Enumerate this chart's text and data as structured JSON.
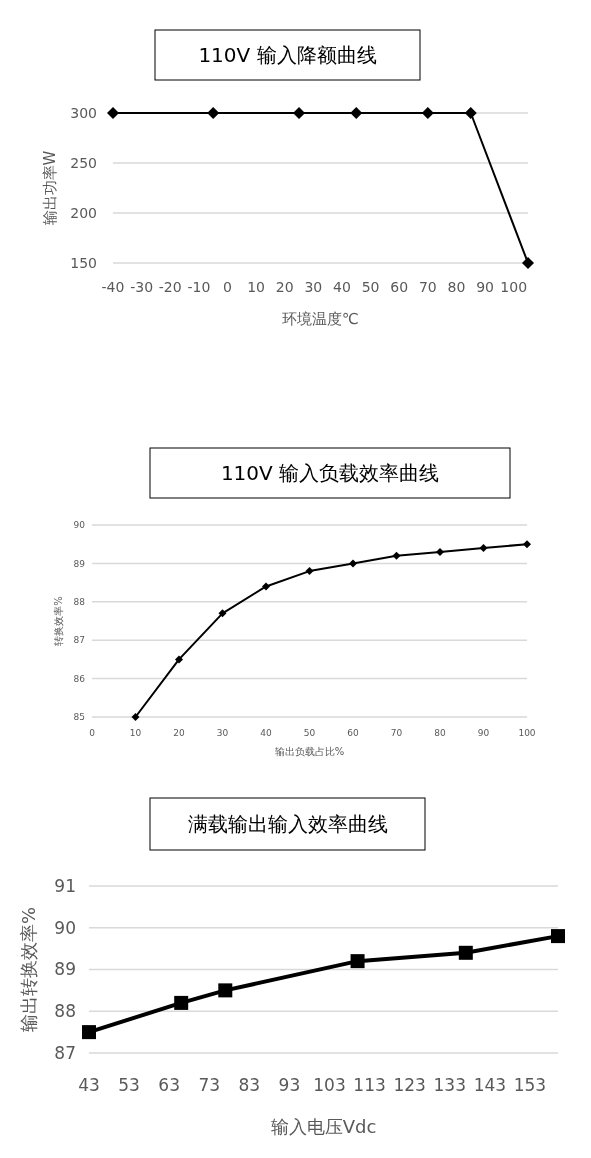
{
  "chart_data": [
    {
      "type": "line",
      "title": "110V 输入降额曲线",
      "xlabel": "环境温度℃",
      "ylabel": "输出功率W",
      "x": [
        -40,
        -5,
        25,
        45,
        70,
        85,
        105
      ],
      "series": [
        {
          "color": "#000000",
          "values": [
            300,
            300,
            300,
            300,
            300,
            300,
            150
          ]
        }
      ],
      "xlim": [
        -40,
        105
      ],
      "xticks": [
        -40,
        -30,
        -20,
        -10,
        0,
        10,
        20,
        30,
        40,
        50,
        60,
        70,
        80,
        90,
        100
      ],
      "ylim": [
        150,
        300
      ],
      "yticks": [
        150,
        200,
        250,
        300
      ],
      "grid": "y",
      "marker": "diamond"
    },
    {
      "type": "line",
      "title": "110V 输入负载效率曲线",
      "xlabel": "输出负载占比%",
      "ylabel": "转换效率%",
      "x": [
        10,
        20,
        30,
        40,
        50,
        60,
        70,
        80,
        90,
        100
      ],
      "series": [
        {
          "color": "#000000",
          "values": [
            85,
            86.5,
            87.7,
            88.4,
            88.8,
            89.0,
            89.2,
            89.3,
            89.4,
            89.5
          ]
        }
      ],
      "xlim": [
        0,
        100
      ],
      "xticks": [
        0,
        10,
        20,
        30,
        40,
        50,
        60,
        70,
        80,
        90,
        100
      ],
      "ylim": [
        85,
        90
      ],
      "yticks": [
        85,
        86,
        87,
        88,
        89,
        90
      ],
      "grid": "y",
      "marker": "diamond"
    },
    {
      "type": "line",
      "title": "满载输出输入效率曲线",
      "xlabel": "输入电压Vdc",
      "ylabel": "输出转换效率%",
      "x": [
        43,
        66,
        77,
        110,
        137,
        160
      ],
      "series": [
        {
          "color": "#000000",
          "values": [
            87.5,
            88.2,
            88.5,
            89.2,
            89.4,
            89.8
          ]
        }
      ],
      "xlim": [
        43,
        160
      ],
      "xticks": [
        43,
        53,
        63,
        73,
        83,
        93,
        103,
        113,
        123,
        133,
        143,
        153
      ],
      "ylim": [
        87,
        91
      ],
      "yticks": [
        87,
        88,
        89,
        90,
        91
      ],
      "grid": "y",
      "marker": "square"
    }
  ]
}
